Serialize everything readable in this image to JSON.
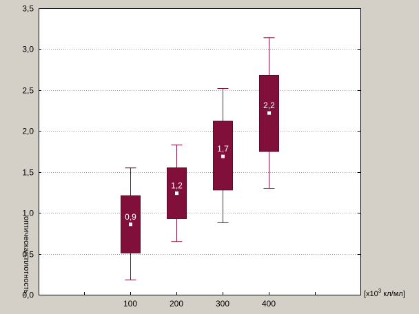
{
  "chart_data": {
    "type": "boxplot",
    "title": "",
    "ylabel": "оптическая плотность,",
    "xlabel_prefix": "[x10",
    "xlabel_superscript": "3",
    "xlabel_suffix": " кл/мл]",
    "ylim": [
      0,
      3.5
    ],
    "yticks": [
      "0,0",
      "0,5",
      "1,0",
      "1,5",
      "2,0",
      "2,5",
      "3,0",
      "3,5"
    ],
    "categories": [
      "100",
      "200",
      "300",
      "400"
    ],
    "grid": "horizontal dotted",
    "colors": {
      "box": "#80103a",
      "whisker": "#80103a",
      "mean_marker": "#ffffff",
      "background": "#ffffff"
    },
    "boxes": [
      {
        "category": "100",
        "min": 0.18,
        "q1": 0.51,
        "mean": 0.86,
        "q3": 1.21,
        "max": 1.55,
        "label": "0,9"
      },
      {
        "category": "200",
        "min": 0.65,
        "q1": 0.93,
        "mean": 1.24,
        "q3": 1.55,
        "max": 1.83,
        "label": "1,2"
      },
      {
        "category": "300",
        "min": 0.88,
        "q1": 1.28,
        "mean": 1.69,
        "q3": 2.12,
        "max": 2.52,
        "label": "1,7"
      },
      {
        "category": "400",
        "min": 1.3,
        "q1": 1.75,
        "mean": 2.22,
        "q3": 2.68,
        "max": 3.14,
        "label": "2,2"
      }
    ]
  }
}
